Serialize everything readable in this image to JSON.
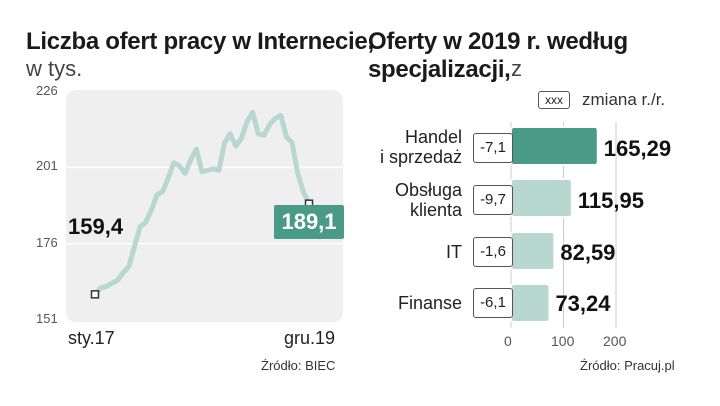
{
  "left_title": {
    "bold": "Liczba ofert pracy w Internecie,",
    "unit": "w tys."
  },
  "right_title": {
    "line1": "Oferty w 2019 r. według",
    "line2": "specjalizacji,",
    "unit": "z"
  },
  "left_source": "Źródło: BIEC",
  "right_source": "Źródło: Pracuj.pl",
  "legend": {
    "box": "xxx",
    "label": "zmiana r./r."
  },
  "colors": {
    "accent": "#4a9b85",
    "accent_light": "#b8d8cf",
    "panel": "#efefef"
  },
  "chart_data": [
    {
      "type": "line",
      "title": "Liczba ofert pracy w Internecie, w tys.",
      "y_ticks": [
        151,
        176,
        201,
        226
      ],
      "ylim": [
        151,
        226
      ],
      "x_tick_labels": [
        "sty.17",
        "gru.19"
      ],
      "start_label": "159,4",
      "end_label": "189,1",
      "values": [
        159.4,
        161.5,
        162.0,
        163.0,
        164.0,
        166.5,
        168.5,
        175.0,
        181.5,
        183.0,
        187.0,
        192.0,
        193.0,
        197.5,
        202.5,
        201.5,
        199.0,
        203.5,
        207.0,
        199.5,
        200.0,
        200.5,
        200.0,
        209.0,
        212.0,
        208.0,
        210.5,
        216.0,
        219.0,
        212.0,
        211.5,
        215.0,
        217.0,
        218.0,
        211.0,
        209.0,
        199.0,
        193.0,
        189.1
      ]
    },
    {
      "type": "bar",
      "title": "Oferty w 2019 r. według specjalizacji",
      "orientation": "horizontal",
      "categories": [
        "Handel\ni sprzedaż",
        "Obsługa\nklienta",
        "IT",
        "Finanse"
      ],
      "values": [
        165.29,
        115.95,
        82.59,
        73.24
      ],
      "value_labels": [
        "165,29",
        "115,95",
        "82,59",
        "73,24"
      ],
      "changes": [
        "-7,1",
        "-9,7",
        "-1,6",
        "-6,1"
      ],
      "x_ticks": [
        0,
        100,
        200
      ],
      "xlim": [
        0,
        200
      ]
    }
  ]
}
